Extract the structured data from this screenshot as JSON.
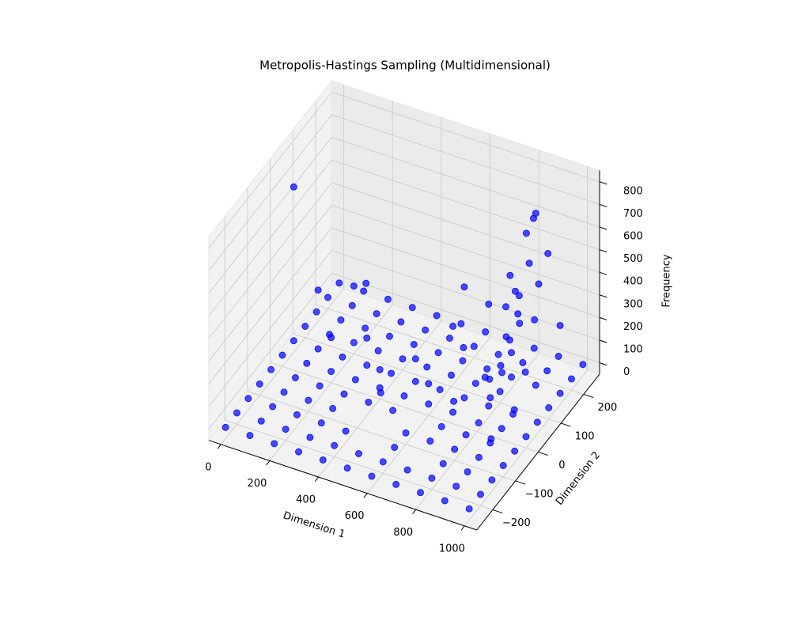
{
  "chart_data": {
    "type": "scatter3d",
    "title": "Metropolis-Hastings Sampling (Multidimensional)",
    "x_label": "Dimension 1",
    "y_label": "Dimension 2",
    "z_label": "Frequency",
    "color": "#0000ff",
    "xlim": [
      -50,
      1050
    ],
    "ylim": [
      -270,
      270
    ],
    "zlim": [
      -50,
      850
    ],
    "xticks": [
      0,
      200,
      400,
      600,
      800,
      1000
    ],
    "yticks": [
      {
        "value": -200,
        "label": "−200"
      },
      {
        "value": -100,
        "label": "−100"
      },
      0,
      100,
      200
    ],
    "zticks": [
      0,
      100,
      200,
      300,
      400,
      500,
      600,
      700,
      800
    ],
    "grid": true,
    "x": [
      0,
      0,
      0,
      0,
      0,
      0,
      0,
      0,
      0,
      0,
      0,
      100,
      100,
      100,
      100,
      100,
      100,
      100,
      100,
      100,
      100,
      100,
      200,
      200,
      200,
      200,
      200,
      200,
      200,
      200,
      200,
      200,
      200,
      300,
      300,
      300,
      300,
      300,
      300,
      300,
      300,
      300,
      300,
      300,
      400,
      400,
      400,
      400,
      400,
      400,
      400,
      400,
      400,
      400,
      500,
      500,
      500,
      500,
      500,
      500,
      500,
      500,
      500,
      600,
      600,
      600,
      600,
      600,
      600,
      600,
      600,
      600,
      600,
      700,
      700,
      700,
      700,
      700,
      700,
      700,
      700,
      700,
      700,
      800,
      800,
      800,
      800,
      800,
      800,
      800,
      800,
      800,
      800,
      900,
      900,
      900,
      900,
      900,
      900,
      900,
      900,
      900,
      900,
      1000,
      1000,
      1000,
      1000,
      1000,
      1000,
      1000,
      1000,
      1000,
      1000,
      1000,
      0,
      100,
      200,
      250,
      200,
      300,
      400,
      500,
      450,
      600,
      650,
      700,
      700,
      800,
      750,
      850,
      900,
      900,
      880,
      920,
      950,
      860,
      900,
      940,
      880,
      920,
      860,
      960,
      900,
      940,
      880,
      1000,
      920,
      860,
      960,
      900,
      840,
      980,
      880,
      950
    ],
    "y": [
      -250,
      -200,
      -150,
      -100,
      -50,
      0,
      50,
      100,
      150,
      200,
      250,
      -250,
      -200,
      -150,
      -100,
      -50,
      0,
      50,
      100,
      150,
      200,
      250,
      -250,
      -200,
      -150,
      -100,
      -50,
      0,
      50,
      100,
      150,
      200,
      250,
      -250,
      -200,
      -150,
      -100,
      -50,
      0,
      50,
      100,
      150,
      200,
      250,
      -250,
      -200,
      -150,
      -50,
      0,
      50,
      100,
      150,
      200,
      250,
      -250,
      -200,
      -50,
      0,
      50,
      100,
      150,
      200,
      250,
      -250,
      -200,
      -150,
      -100,
      0,
      50,
      100,
      150,
      200,
      250,
      -250,
      -200,
      -100,
      -50,
      0,
      50,
      100,
      150,
      200,
      250,
      -250,
      -200,
      -150,
      -100,
      -50,
      50,
      100,
      150,
      200,
      250,
      -250,
      -200,
      -150,
      -100,
      -50,
      0,
      50,
      150,
      200,
      250,
      -250,
      -200,
      -150,
      -100,
      -50,
      0,
      50,
      100,
      150,
      200,
      250,
      50,
      50,
      100,
      100,
      0,
      50,
      0,
      50,
      -50,
      0,
      100,
      50,
      0,
      50,
      -50,
      0,
      150,
      140,
      130,
      100,
      150,
      80,
      60,
      120,
      40,
      50,
      120,
      80,
      20,
      0,
      100,
      150,
      -20,
      -30,
      40,
      -50,
      60,
      -30,
      -80,
      -100
    ],
    "z": [
      0,
      0,
      0,
      0,
      0,
      0,
      0,
      0,
      0,
      0,
      0,
      0,
      0,
      0,
      0,
      0,
      0,
      0,
      0,
      0,
      0,
      0,
      0,
      0,
      0,
      0,
      0,
      0,
      0,
      0,
      0,
      0,
      0,
      0,
      0,
      0,
      0,
      0,
      0,
      0,
      0,
      0,
      0,
      0,
      0,
      0,
      0,
      0,
      0,
      0,
      0,
      0,
      0,
      0,
      0,
      0,
      0,
      0,
      0,
      0,
      0,
      0,
      0,
      0,
      0,
      0,
      0,
      0,
      0,
      0,
      0,
      0,
      0,
      0,
      0,
      0,
      0,
      0,
      0,
      0,
      0,
      0,
      0,
      0,
      0,
      0,
      0,
      0,
      0,
      0,
      0,
      0,
      0,
      0,
      0,
      0,
      0,
      0,
      0,
      0,
      0,
      0,
      0,
      0,
      0,
      0,
      0,
      0,
      0,
      0,
      0,
      0,
      0,
      0,
      680,
      260,
      250,
      280,
      150,
      120,
      80,
      100,
      60,
      90,
      140,
      490,
      380,
      450,
      130,
      200,
      760,
      750,
      690,
      610,
      600,
      560,
      530,
      500,
      480,
      450,
      420,
      400,
      380,
      350,
      330,
      300,
      280,
      250,
      220,
      200,
      180,
      150,
      120,
      100
    ]
  }
}
